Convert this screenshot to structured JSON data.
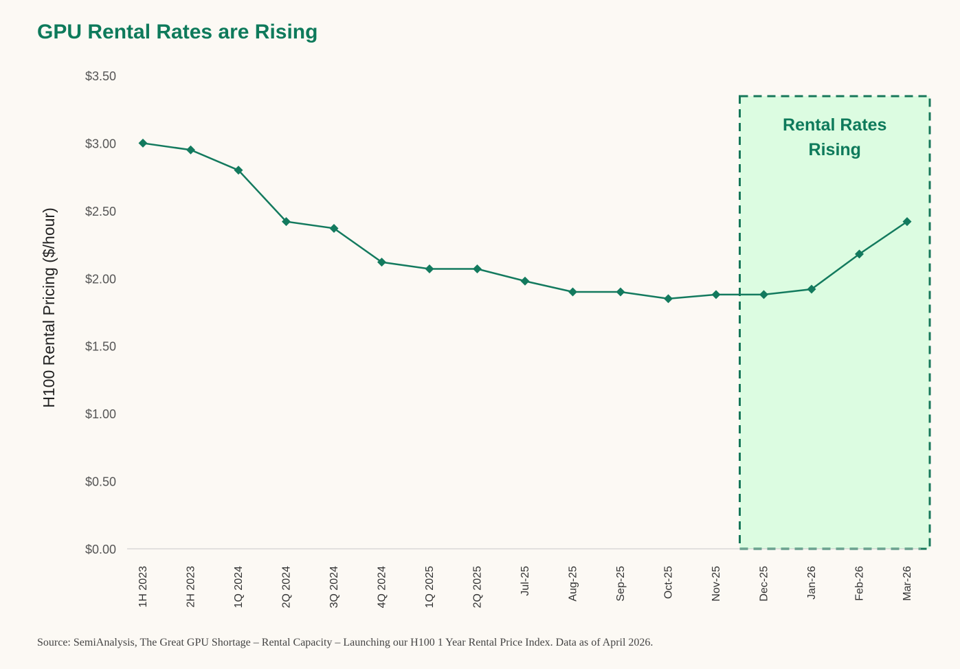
{
  "chart_data": {
    "type": "line",
    "title": "GPU Rental Rates are Rising",
    "ylabel": "H100 Rental Pricing ($/hour)",
    "xlabel": "",
    "categories": [
      "1H 2023",
      "2H 2023",
      "1Q 2024",
      "2Q 2024",
      "3Q 2024",
      "4Q 2024",
      "1Q 2025",
      "2Q 2025",
      "Jul-25",
      "Aug-25",
      "Sep-25",
      "Oct-25",
      "Nov-25",
      "Dec-25",
      "Jan-26",
      "Feb-26",
      "Mar-26"
    ],
    "series": [
      {
        "values": [
          3.0,
          2.95,
          2.8,
          2.42,
          2.37,
          2.12,
          2.07,
          2.07,
          1.98,
          1.9,
          1.9,
          1.85,
          1.88,
          1.88,
          1.92,
          2.18,
          2.42
        ]
      }
    ],
    "ylim": [
      0,
      3.5
    ],
    "yticks": [
      "$0.00",
      "$0.50",
      "$1.00",
      "$1.50",
      "$2.00",
      "$2.50",
      "$3.00",
      "$3.50"
    ],
    "ytick_values": [
      0,
      0.5,
      1.0,
      1.5,
      2.0,
      2.5,
      3.0,
      3.5
    ],
    "grid": false,
    "annotation": {
      "text_line1": "Rental Rates",
      "text_line2": "Rising",
      "from_category": "Dec-25",
      "to_category": "Mar-26"
    },
    "colors": {
      "line": "#137a5e",
      "highlight_fill": "#dcfce1",
      "highlight_border": "#17775a",
      "title": "#0e7a5b",
      "axis_text": "#555555"
    }
  },
  "footer": {
    "source": "Source: SemiAnalysis, The Great GPU Shortage – Rental Capacity – Launching our H100 1 Year Rental Price Index. Data as of April 2026."
  }
}
